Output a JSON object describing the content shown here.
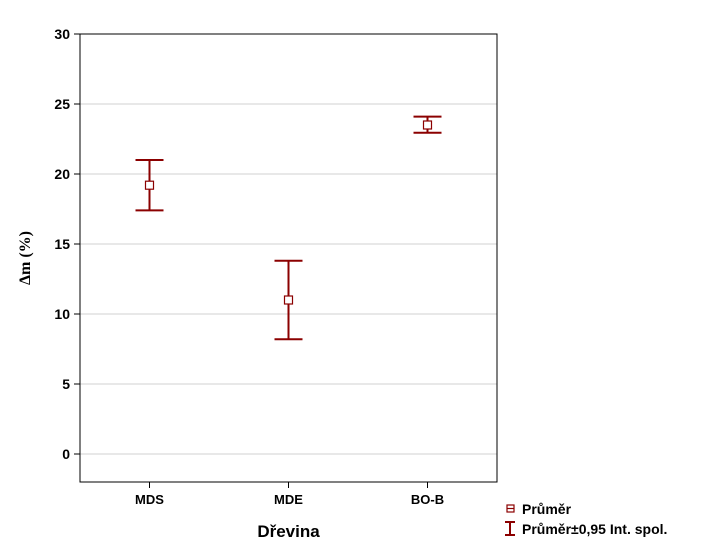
{
  "chart_data": {
    "type": "scatter",
    "title": "",
    "xlabel": "Dřevina",
    "ylabel": "Δm (%)",
    "categories": [
      "MDS",
      "MDE",
      "BO-B"
    ],
    "series": [
      {
        "name": "Průměr",
        "values": [
          19.2,
          11.0,
          23.5
        ],
        "ci_lower": [
          17.4,
          8.2,
          22.95
        ],
        "ci_upper": [
          21.0,
          13.8,
          24.1
        ]
      }
    ],
    "ylim": [
      -2,
      30
    ],
    "yticks": [
      0,
      5,
      10,
      15,
      20,
      25,
      30
    ],
    "grid": true,
    "legend": {
      "placement": "bottom-right",
      "entries": [
        "Průměr",
        "Průměr±0,95 Int. spol."
      ]
    },
    "colors": {
      "series": "#8b0000",
      "grid": "#d0d0d0",
      "axis": "#000000"
    }
  }
}
